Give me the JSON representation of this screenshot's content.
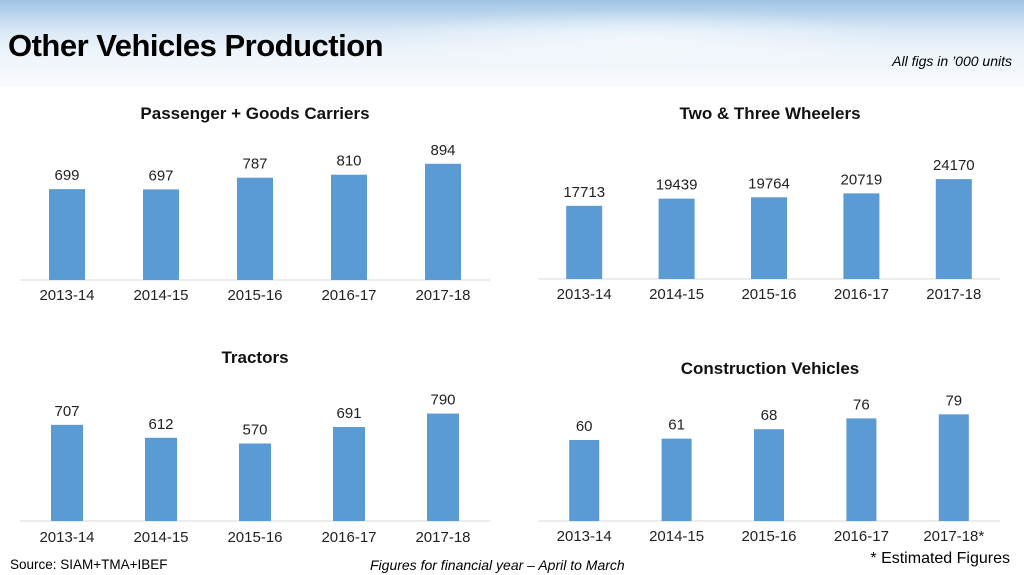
{
  "page": {
    "title": "Other Vehicles Production",
    "units_note": "All figs in ’000 units",
    "source": "Source: SIAM+TMA+IBEF",
    "fy_note": "Figures for financial year – April to March",
    "estimate_note": "* Estimated Figures"
  },
  "colors": {
    "bar": "#5b9bd5",
    "axis": "#d9d9d9",
    "text": "#222222"
  },
  "chart_data": [
    {
      "type": "bar",
      "title": "Passenger + Goods Carriers",
      "categories": [
        "2013-14",
        "2014-15",
        "2015-16",
        "2016-17",
        "2017-18"
      ],
      "values": [
        699,
        697,
        787,
        810,
        894
      ],
      "ylim": [
        0,
        1000
      ]
    },
    {
      "type": "bar",
      "title": "Two & Three Wheelers",
      "categories": [
        "2013-14",
        "2014-15",
        "2015-16",
        "2016-17",
        "2017-18"
      ],
      "values": [
        17713,
        19439,
        19764,
        20719,
        24170
      ],
      "ylim": [
        0,
        30000
      ]
    },
    {
      "type": "bar",
      "title": "Tractors",
      "categories": [
        "2013-14",
        "2014-15",
        "2015-16",
        "2016-17",
        "2017-18"
      ],
      "values": [
        707,
        612,
        570,
        691,
        790
      ],
      "ylim": [
        0,
        1000
      ]
    },
    {
      "type": "bar",
      "title": "Construction Vehicles",
      "categories": [
        "2013-14",
        "2014-15",
        "2015-16",
        "2016-17",
        "2017-18*"
      ],
      "values": [
        60,
        61,
        68,
        76,
        79
      ],
      "ylim": [
        0,
        100
      ]
    }
  ]
}
